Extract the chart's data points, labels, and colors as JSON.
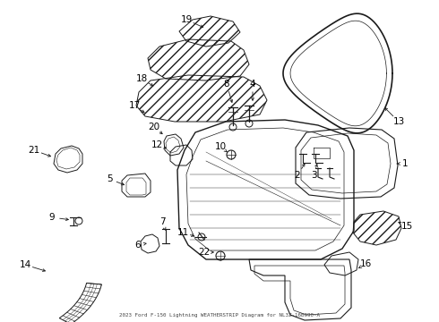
{
  "bg_color": "#ffffff",
  "line_color": "#1a1a1a",
  "label_color": "#000000",
  "fig_width": 4.9,
  "fig_height": 3.6,
  "dpi": 100,
  "note_text": "2023 Ford F-150 Lightning WEATHERSTRIP Diagram for NL3Z-16B990-A"
}
